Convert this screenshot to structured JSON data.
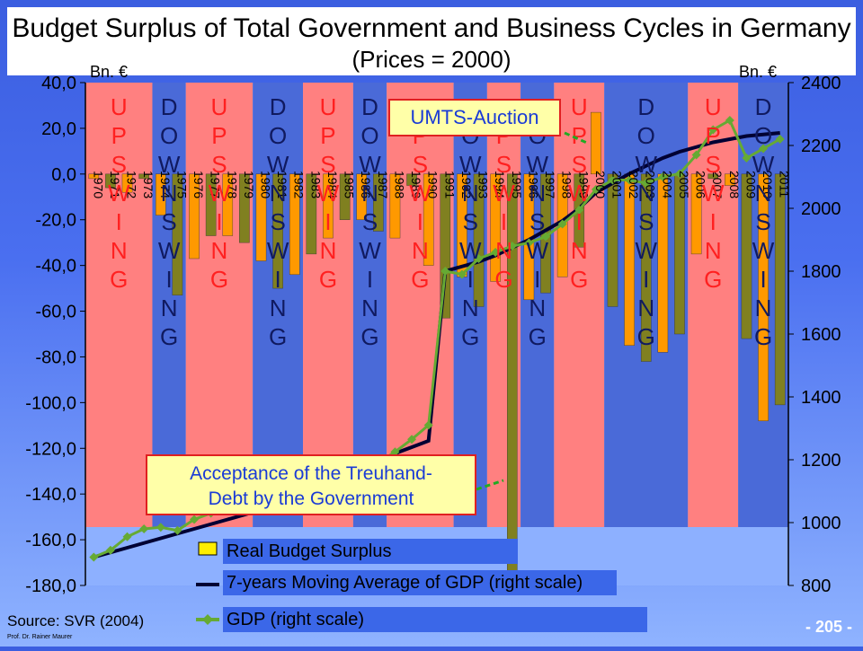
{
  "slide": {
    "title_line1": "Budget Surplus of Total Government and Business Cycles in Germany",
    "title_line2": "(Prices = 2000)",
    "source": "Source: SVR (2004)",
    "author": "Prof. Dr. Rainer Maurer",
    "page_number": "- 205 -",
    "callout_umts": "UMTS-Auction",
    "callout_treuhand_line1": "Acceptance of the Treuhand-",
    "callout_treuhand_line2": "Debt by the Government"
  },
  "legend": {
    "surplus": "Real Budget Surplus",
    "moving_avg": "7-years Moving Average of GDP (right scale)",
    "gdp": "GDP (right scale)"
  },
  "colors": {
    "upswing_band": "#ff8080",
    "downswing_band": "#4a6ad8",
    "bar_fill": "#ff9900",
    "bar_fill_alt": "#808020",
    "moving_avg_line": "#000033",
    "gdp_line": "#66aa33",
    "phase_label_up": "#ff2020",
    "phase_label_down": "#101a60"
  },
  "chart_data": {
    "type": "bar",
    "title": "Budget Surplus of Total Government and Business Cycles in Germany",
    "ylabel_left": "Bn. €",
    "ylabel_right": "Bn. €",
    "ylim_left": [
      -180,
      40
    ],
    "ylim_right": [
      800,
      2400
    ],
    "yticks_left": [
      "40,0",
      "20,0",
      "0,0",
      "-20,0",
      "-40,0",
      "-60,0",
      "-80,0",
      "-100,0",
      "-120,0",
      "-140,0",
      "-160,0",
      "-180,0"
    ],
    "yticks_right": [
      "2400",
      "2200",
      "2000",
      "1800",
      "1600",
      "1400",
      "1200",
      "1000",
      "800"
    ],
    "categories": [
      "1970",
      "1971",
      "1972",
      "1973",
      "1974",
      "1975",
      "1976",
      "1977",
      "1978",
      "1979",
      "1980",
      "1981",
      "1982",
      "1983",
      "1984",
      "1985",
      "1986",
      "1987",
      "1988",
      "1989",
      "1990",
      "1991",
      "1992",
      "1993",
      "1994",
      "1995",
      "1996",
      "1997",
      "1998",
      "1999",
      "2000",
      "2001",
      "2002",
      "2003",
      "2004",
      "2005",
      "2006",
      "2007",
      "2008",
      "2009",
      "2010",
      "2011"
    ],
    "series": [
      {
        "name": "Real Budget Surplus",
        "values": [
          -2,
          -6,
          -8,
          -2,
          -18,
          -53,
          -37,
          -27,
          -27,
          -30,
          -38,
          -50,
          -44,
          -35,
          -28,
          -20,
          -20,
          -25,
          -28,
          -5,
          -40,
          -63,
          -45,
          -58,
          -47,
          -178,
          -55,
          -52,
          -45,
          -32,
          27,
          -58,
          -75,
          -82,
          -78,
          -70,
          -35,
          -2,
          -5,
          -72,
          -108,
          -101
        ]
      },
      {
        "name": "7-years Moving Average of GDP (right scale)",
        "values": [
          890,
          905,
          920,
          935,
          950,
          965,
          980,
          995,
          1010,
          1025,
          1040,
          1055,
          1075,
          1095,
          1115,
          1140,
          1165,
          1190,
          1220,
          1240,
          1260,
          1800,
          1815,
          1830,
          1850,
          1875,
          1900,
          1930,
          1960,
          2000,
          2050,
          2080,
          2110,
          2135,
          2160,
          2180,
          2195,
          2210,
          2220,
          2230,
          2235,
          2240
        ]
      },
      {
        "name": "GDP (right scale)",
        "values": [
          890,
          912,
          955,
          980,
          985,
          975,
          1010,
          1030,
          1055,
          1080,
          1090,
          1090,
          1085,
          1100,
          1125,
          1150,
          1170,
          1190,
          1225,
          1265,
          1310,
          1800,
          1790,
          1840,
          1860,
          1880,
          1890,
          1910,
          1950,
          1995,
          2060,
          2090,
          2090,
          2080,
          2100,
          2110,
          2170,
          2250,
          2280,
          2160,
          2190,
          2220
        ]
      }
    ],
    "phases": [
      {
        "label": "UPSWING",
        "type": "up",
        "from": "1970",
        "to": "1973"
      },
      {
        "label": "DOWNSWING",
        "type": "down",
        "from": "1974",
        "to": "1975"
      },
      {
        "label": "UPSWING",
        "type": "up",
        "from": "1976",
        "to": "1979"
      },
      {
        "label": "DOWNSWING",
        "type": "down",
        "from": "1980",
        "to": "1982"
      },
      {
        "label": "UPSWING",
        "type": "up",
        "from": "1983",
        "to": "1985"
      },
      {
        "label": "DOWNSWING",
        "type": "down",
        "from": "1986",
        "to": "1987"
      },
      {
        "label": "UPSWING",
        "type": "up",
        "from": "1988",
        "to": "1991"
      },
      {
        "label": "DOWNSWING",
        "type": "down",
        "from": "1992",
        "to": "1993"
      },
      {
        "label": "UPSWING",
        "type": "up",
        "from": "1994",
        "to": "1995"
      },
      {
        "label": "DOWNSWING",
        "type": "down",
        "from": "1996",
        "to": "1997"
      },
      {
        "label": "UPSWING",
        "type": "up",
        "from": "1998",
        "to": "2000"
      },
      {
        "label": "DOWNSWING",
        "type": "down",
        "from": "2001",
        "to": "2005"
      },
      {
        "label": "UPSWING",
        "type": "up",
        "from": "2006",
        "to": "2008"
      },
      {
        "label": "DOWNSWING",
        "type": "down",
        "from": "2009",
        "to": "2011"
      }
    ],
    "grid": false,
    "legend_position": "bottom"
  }
}
